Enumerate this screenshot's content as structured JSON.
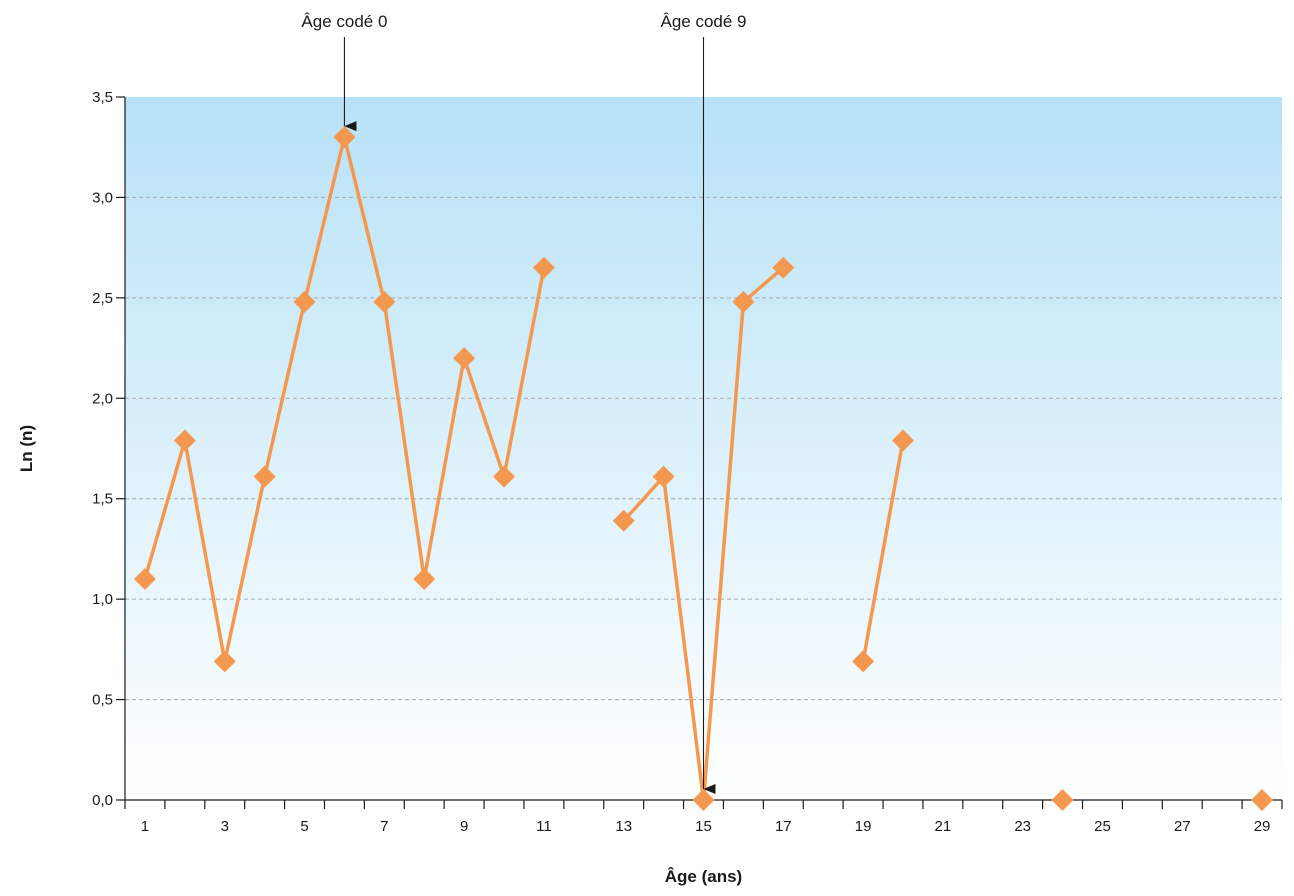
{
  "chart_data": {
    "type": "line",
    "xlabel": "Âge (ans)",
    "ylabel": "Ln (n)",
    "xlim": [
      0.5,
      29.5
    ],
    "ylim": [
      0,
      3.5
    ],
    "x_ticks": [
      1,
      3,
      5,
      7,
      9,
      11,
      13,
      15,
      17,
      19,
      21,
      23,
      25,
      27,
      29
    ],
    "y_ticks": [
      0,
      0.5,
      1,
      1.5,
      2,
      2.5,
      3,
      3.5
    ],
    "y_tick_labels": [
      "0,0",
      "0,5",
      "1,0",
      "1,5",
      "2,0",
      "2,5",
      "3,0",
      "3,5"
    ],
    "grid": "horizontal dashed",
    "series": [
      {
        "color": "#F5984F",
        "marker": "diamond",
        "points": [
          {
            "x": 1,
            "y": 1.1
          },
          {
            "x": 2,
            "y": 1.79
          },
          {
            "x": 3,
            "y": 0.69
          },
          {
            "x": 4,
            "y": 1.61
          },
          {
            "x": 5,
            "y": 2.48
          },
          {
            "x": 6,
            "y": 3.3
          },
          {
            "x": 7,
            "y": 2.48
          },
          {
            "x": 8,
            "y": 1.1
          },
          {
            "x": 9,
            "y": 2.2
          },
          {
            "x": 10,
            "y": 1.61
          },
          {
            "x": 11,
            "y": 2.65
          },
          {
            "x": 12,
            "y": null
          },
          {
            "x": 13,
            "y": 1.39
          },
          {
            "x": 14,
            "y": 1.61
          },
          {
            "x": 15,
            "y": 0
          },
          {
            "x": 16,
            "y": 2.48
          },
          {
            "x": 17,
            "y": 2.65
          },
          {
            "x": 18,
            "y": null
          },
          {
            "x": 19,
            "y": 0.69
          },
          {
            "x": 20,
            "y": 1.79
          },
          {
            "x": 21,
            "y": null
          },
          {
            "x": 22,
            "y": null
          },
          {
            "x": 23,
            "y": null
          },
          {
            "x": 24,
            "y": 0
          },
          {
            "x": 25,
            "y": null
          },
          {
            "x": 26,
            "y": null
          },
          {
            "x": 27,
            "y": null
          },
          {
            "x": 28,
            "y": null
          },
          {
            "x": 29,
            "y": 0
          }
        ]
      }
    ],
    "annotations": [
      {
        "label": "Âge codé 0",
        "x": 6,
        "y": 3.3
      },
      {
        "label": "Âge codé 9",
        "x": 15,
        "y": 0
      }
    ],
    "colors": {
      "background_top": "#B8E2F7",
      "background_bottom": "#FFFFFF",
      "line": "#F5984F",
      "grid": "#A8A8A8",
      "axis": "#1A1A1A"
    }
  }
}
